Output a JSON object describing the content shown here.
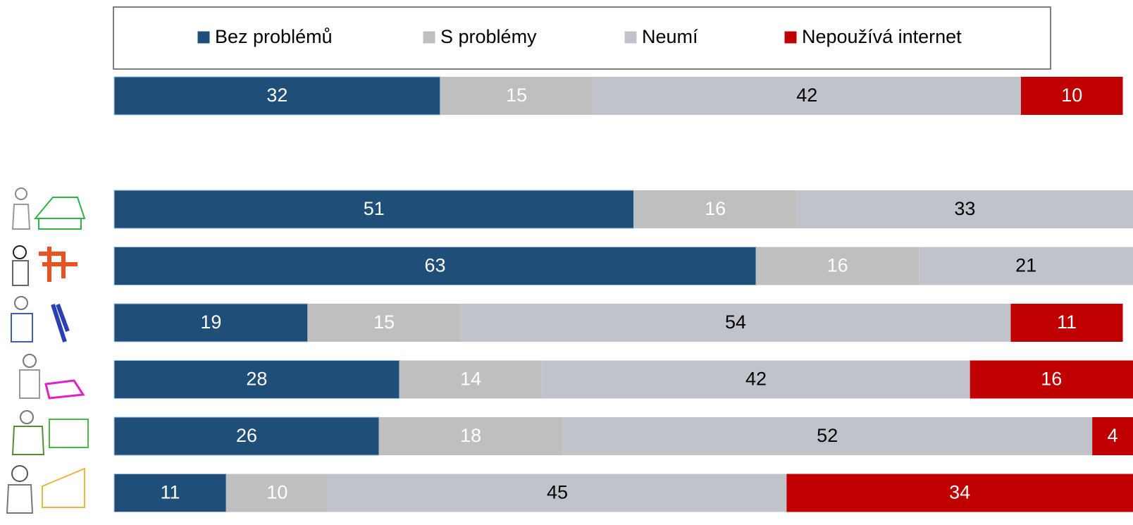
{
  "chart_data": {
    "type": "stacked-bar-horizontal",
    "xlim": [
      0,
      100
    ],
    "legend": "top",
    "series": [
      {
        "name": "Bez problémů",
        "color": "#1f4e79",
        "label_color": "#ffffff",
        "values": [
          32,
          51,
          63,
          19,
          28,
          26,
          11
        ]
      },
      {
        "name": "S problémy",
        "color": "#bfbfbf",
        "label_color": "#ffffff",
        "values": [
          15,
          16,
          16,
          15,
          14,
          18,
          10
        ]
      },
      {
        "name": "Neumí",
        "color": "#c0c4ca",
        "label_color": "#000000",
        "values": [
          42,
          33,
          21,
          54,
          42,
          52,
          45
        ]
      },
      {
        "name": "Nepoužívá internet",
        "color": "#c00000",
        "label_color": "#ffffff",
        "values": [
          10,
          null,
          null,
          11,
          16,
          4,
          34
        ]
      }
    ]
  }
}
